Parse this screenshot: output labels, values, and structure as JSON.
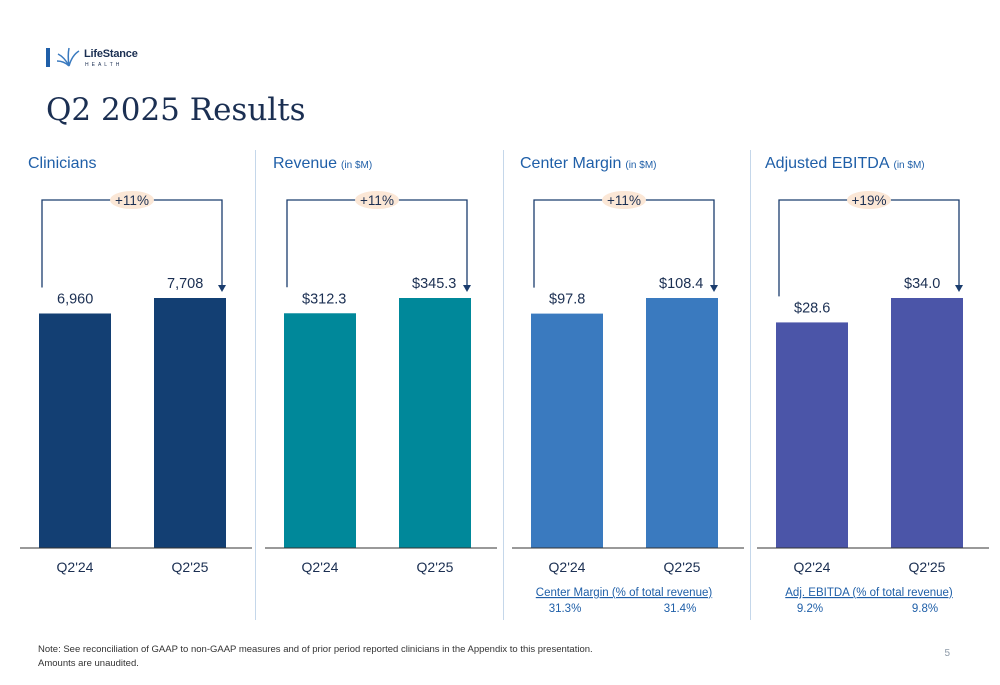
{
  "brand": {
    "name": "LifeStance",
    "sub": "HEALTH"
  },
  "page": {
    "title": "Q2 2025 Results",
    "number": "5"
  },
  "footer": {
    "line1": "Note:  See reconciliation of GAAP to non-GAAP measures and of prior period reported clinicians in the Appendix to this presentation.",
    "line2": "Amounts are unaudited."
  },
  "chart_data": [
    {
      "type": "bar",
      "title": "Clinicians",
      "unit": "",
      "categories": [
        "Q2'24",
        "Q2'25"
      ],
      "values": [
        6960,
        7708
      ],
      "labels": [
        "6,960",
        "7,708"
      ],
      "growth": "+11%",
      "color": "#133f73",
      "footnote": null
    },
    {
      "type": "bar",
      "title": "Revenue",
      "unit": "(in $M)",
      "categories": [
        "Q2'24",
        "Q2'25"
      ],
      "values": [
        312.3,
        345.3
      ],
      "labels": [
        "$312.3",
        "$345.3"
      ],
      "growth": "+11%",
      "color": "#00889a",
      "footnote": null
    },
    {
      "type": "bar",
      "title": "Center Margin",
      "unit": "(in $M)",
      "categories": [
        "Q2'24",
        "Q2'25"
      ],
      "values": [
        97.8,
        108.4
      ],
      "labels": [
        "$97.8",
        "$108.4"
      ],
      "growth": "+11%",
      "color": "#3a7abf",
      "footnote": {
        "title": "Center Margin (% of total revenue)",
        "values": [
          "31.3%",
          "31.4%"
        ]
      }
    },
    {
      "type": "bar",
      "title": "Adjusted EBITDA",
      "unit": "(in $M)",
      "categories": [
        "Q2'24",
        "Q2'25"
      ],
      "values": [
        28.6,
        34.0
      ],
      "labels": [
        "$28.6",
        "$34.0"
      ],
      "growth": "+19%",
      "color": "#4b55a8",
      "footnote": {
        "title": "Adj. EBITDA (% of total revenue)",
        "values": [
          "9.2%",
          "9.8%"
        ]
      }
    }
  ]
}
